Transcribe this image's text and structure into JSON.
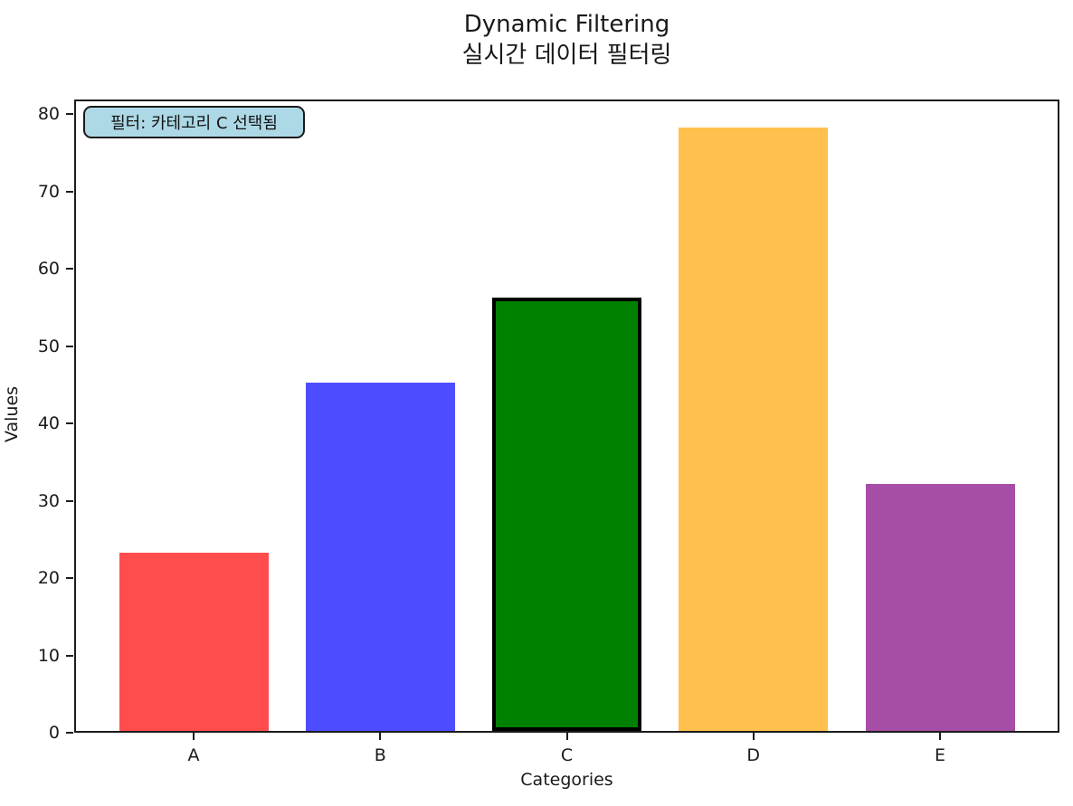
{
  "title": {
    "line1": "Dynamic Filtering",
    "line2": "실시간 데이터 필터링"
  },
  "annotation": {
    "text": "필터: 카테고리 C 선택됨",
    "bg_color": "#ADD8E6",
    "border_color": "#1a1a1a"
  },
  "chart_data": {
    "type": "bar",
    "title": "Dynamic Filtering\n실시간 데이터 필터링",
    "categories": [
      "A",
      "B",
      "C",
      "D",
      "E"
    ],
    "values": [
      23,
      45,
      56,
      78,
      32
    ],
    "bar_colors": [
      "#FF4D4D",
      "#4D4DFF",
      "#008000",
      "#FFC04D",
      "#A64DA6"
    ],
    "selected_index": 2,
    "selected_category": "C",
    "highlight_edge_color": "#000000",
    "highlight_edge_width": 4,
    "xlabel": "Categories",
    "ylabel": "Values",
    "ylim": [
      0,
      82
    ],
    "yticks": [
      0,
      10,
      20,
      30,
      40,
      50,
      60,
      70,
      80
    ],
    "grid": false,
    "legend": null,
    "annotation_text": "필터: 카테고리 C 선택됨"
  }
}
